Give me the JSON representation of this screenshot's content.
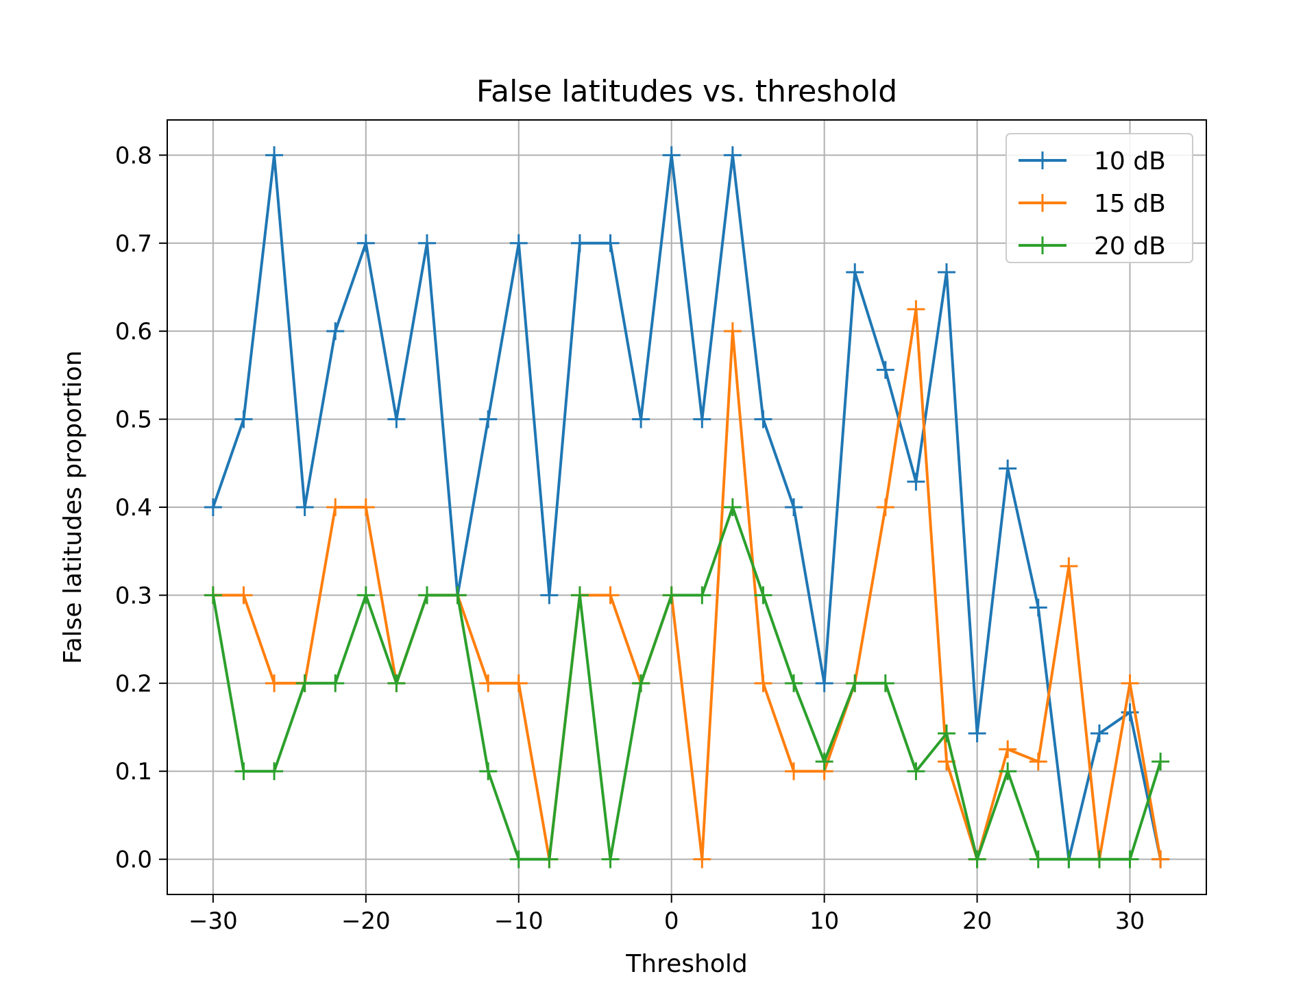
{
  "chart_data": {
    "type": "line",
    "title": "False latitudes vs. threshold",
    "xlabel": "Threshold",
    "ylabel": "False latitudes proportion",
    "xlim": [
      -33,
      35
    ],
    "ylim": [
      -0.04,
      0.84
    ],
    "xticks": [
      -30,
      -20,
      -10,
      0,
      10,
      20,
      30
    ],
    "xtick_labels": [
      "−30",
      "−20",
      "−10",
      "0",
      "10",
      "20",
      "30"
    ],
    "yticks": [
      0.0,
      0.1,
      0.2,
      0.3,
      0.4,
      0.5,
      0.6,
      0.7,
      0.8
    ],
    "ytick_labels": [
      "0.0",
      "0.1",
      "0.2",
      "0.3",
      "0.4",
      "0.5",
      "0.6",
      "0.7",
      "0.8"
    ],
    "grid": true,
    "legend_position": "top-right",
    "marker": "plus",
    "x": [
      -30,
      -28,
      -26,
      -24,
      -22,
      -20,
      -18,
      -16,
      -14,
      -12,
      -10,
      -8,
      -6,
      -4,
      -2,
      0,
      2,
      4,
      6,
      8,
      10,
      12,
      14,
      16,
      18,
      20,
      22,
      24,
      26,
      28,
      30,
      32
    ],
    "series": [
      {
        "name": "10 dB",
        "color": "#1f77b4",
        "values": [
          0.4,
          0.5,
          0.8,
          0.4,
          0.6,
          0.7,
          0.5,
          0.7,
          0.3,
          0.5,
          0.7,
          0.3,
          0.7,
          0.7,
          0.5,
          0.8,
          0.5,
          0.8,
          0.5,
          0.4,
          0.2,
          0.667,
          0.556,
          0.429,
          0.667,
          0.143,
          0.444,
          0.286,
          0.0,
          0.143,
          0.167,
          0.0
        ]
      },
      {
        "name": "15 dB",
        "color": "#ff7f0e",
        "values": [
          0.3,
          0.3,
          0.2,
          0.2,
          0.4,
          0.4,
          0.2,
          0.3,
          0.3,
          0.2,
          0.2,
          0.0,
          0.3,
          0.3,
          0.2,
          0.3,
          0.0,
          0.6,
          0.2,
          0.1,
          0.1,
          0.2,
          0.4,
          0.625,
          0.111,
          0.0,
          0.125,
          0.111,
          0.333,
          0.0,
          0.2,
          0.0
        ]
      },
      {
        "name": "20 dB",
        "color": "#2ca02c",
        "values": [
          0.3,
          0.1,
          0.1,
          0.2,
          0.2,
          0.3,
          0.2,
          0.3,
          0.3,
          0.1,
          0.0,
          0.0,
          0.3,
          0.0,
          0.2,
          0.3,
          0.3,
          0.4,
          0.3,
          0.2,
          0.111,
          0.2,
          0.2,
          0.1,
          0.143,
          0.0,
          0.1,
          0.0,
          0.0,
          0.0,
          0.0,
          0.111
        ]
      }
    ]
  }
}
